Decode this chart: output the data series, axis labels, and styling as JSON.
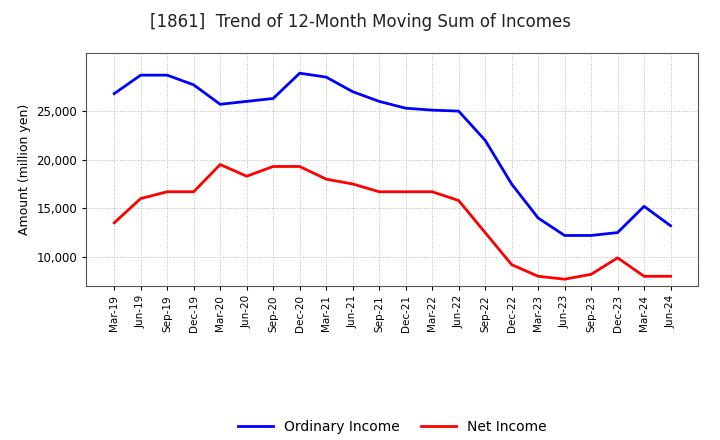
{
  "title": "[1861]  Trend of 12-Month Moving Sum of Incomes",
  "ylabel": "Amount (million yen)",
  "background_color": "#ffffff",
  "plot_background": "#ffffff",
  "grid_color": "#bbbbbb",
  "ordinary_income_color": "#0000ff",
  "net_income_color": "#ff0000",
  "ordinary_income_linewidth": 2.0,
  "net_income_linewidth": 2.0,
  "ylim": [
    7000,
    31000
  ],
  "yticks": [
    10000,
    15000,
    20000,
    25000
  ],
  "legend_labels": [
    "Ordinary Income",
    "Net Income"
  ],
  "x_labels": [
    "Mar-19",
    "Jun-19",
    "Sep-19",
    "Dec-19",
    "Mar-20",
    "Jun-20",
    "Sep-20",
    "Dec-20",
    "Mar-21",
    "Jun-21",
    "Sep-21",
    "Dec-21",
    "Mar-22",
    "Jun-22",
    "Sep-22",
    "Dec-22",
    "Mar-23",
    "Jun-23",
    "Sep-23",
    "Dec-23",
    "Mar-24",
    "Jun-24"
  ],
  "ordinary_income": [
    26800,
    28700,
    28700,
    27700,
    25700,
    26000,
    26300,
    28900,
    28500,
    27000,
    26000,
    25300,
    25100,
    25000,
    22000,
    17500,
    14000,
    12200,
    12200,
    12500,
    15200,
    13200
  ],
  "net_income": [
    13500,
    16000,
    16700,
    16700,
    19500,
    18300,
    19300,
    19300,
    18000,
    17500,
    16700,
    16700,
    16700,
    15800,
    12500,
    9200,
    8000,
    7700,
    8200,
    9900,
    8000,
    8000
  ]
}
